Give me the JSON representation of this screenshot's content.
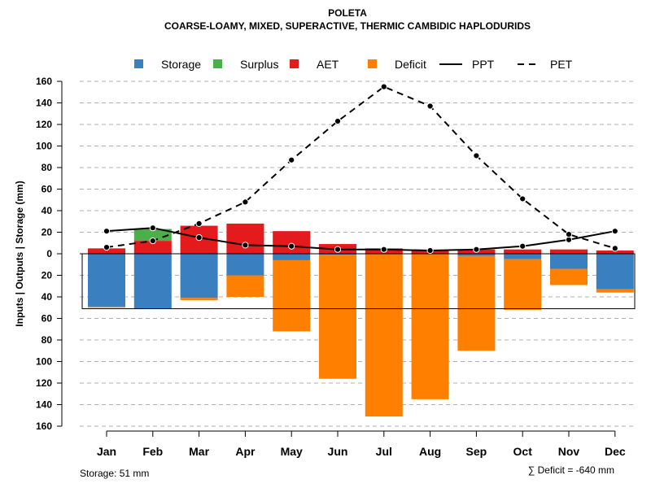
{
  "chart_data": {
    "type": "bar",
    "title": "POLETA",
    "subtitle": "COARSE-LOAMY, MIXED, SUPERACTIVE, THERMIC CAMBIDIC HAPLODURIDS",
    "ylabel": "Inputs | Outputs | Storage    (mm)",
    "ylim": [
      -160,
      160
    ],
    "y_ticks": [
      -160,
      -140,
      -120,
      -100,
      -80,
      -60,
      -40,
      -20,
      0,
      20,
      40,
      60,
      80,
      100,
      120,
      140,
      160
    ],
    "y_tick_labels": [
      "160",
      "140",
      "120",
      "100",
      "80",
      "60",
      "40",
      "20",
      "0",
      "20",
      "40",
      "60",
      "80",
      "100",
      "120",
      "140",
      "160"
    ],
    "categories": [
      "Jan",
      "Feb",
      "Mar",
      "Apr",
      "May",
      "Jun",
      "Jul",
      "Aug",
      "Sep",
      "Oct",
      "Nov",
      "Dec"
    ],
    "legend": [
      {
        "name": "Storage",
        "color": "#3A7FC0",
        "kind": "box"
      },
      {
        "name": "Surplus",
        "color": "#4DAF4A",
        "kind": "box"
      },
      {
        "name": "AET",
        "color": "#E41A1C",
        "kind": "box"
      },
      {
        "name": "Deficit",
        "color": "#FF8000",
        "kind": "box"
      },
      {
        "name": "PPT",
        "color": "#000000",
        "kind": "solid"
      },
      {
        "name": "PET",
        "color": "#000000",
        "kind": "dashed"
      }
    ],
    "series": [
      {
        "name": "AET",
        "values": [
          5,
          12,
          26,
          28,
          21,
          9,
          5,
          3,
          4,
          4,
          4,
          3
        ]
      },
      {
        "name": "Surplus",
        "values": [
          0,
          11,
          0,
          0,
          0,
          0,
          0,
          0,
          0,
          0,
          0,
          0
        ]
      },
      {
        "name": "Storage",
        "values": [
          49,
          51,
          41,
          20,
          6,
          1,
          0,
          0,
          2,
          5,
          14,
          33
        ]
      },
      {
        "name": "Deficit",
        "values": [
          1,
          0,
          2,
          20,
          66,
          115,
          151,
          135,
          88,
          47,
          15,
          3
        ]
      },
      {
        "name": "PPT",
        "values": [
          21,
          24,
          15,
          8,
          7,
          4,
          4,
          3,
          4,
          7,
          13,
          21
        ]
      },
      {
        "name": "PET",
        "values": [
          6,
          12,
          28,
          48,
          87,
          123,
          155,
          137,
          91,
          51,
          18,
          5
        ]
      }
    ],
    "storage_capacity": 51,
    "grid": true,
    "legend_position": "top"
  },
  "footer": {
    "storage_label": "Storage: 51 mm",
    "deficit_label": "∑ Deficit = -640 mm"
  }
}
